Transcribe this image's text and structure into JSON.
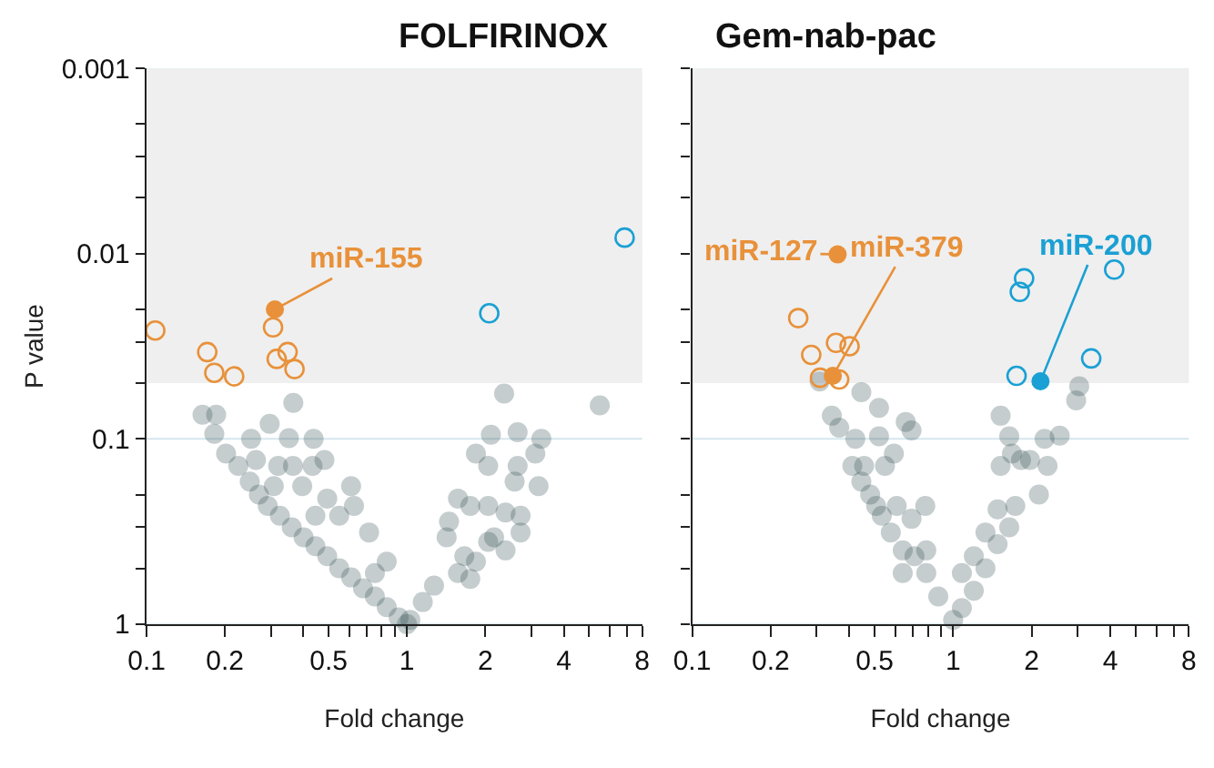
{
  "chart_data": [
    {
      "type": "scatter",
      "title": "FOLFIRINOX",
      "xlabel": "Fold change",
      "ylabel": "P value",
      "log": "xy",
      "grid": "y",
      "xlim": [
        0.1,
        8
      ],
      "xticks": [
        0.1,
        0.2,
        {
          "value": 0.3,
          "label": null
        },
        {
          "value": 0.4,
          "label": null
        },
        0.5,
        {
          "value": 0.6,
          "label": null
        },
        {
          "value": 0.7,
          "label": null
        },
        {
          "value": 0.8,
          "label": null
        },
        {
          "value": 0.9,
          "label": null
        },
        1,
        2,
        {
          "value": 3,
          "label": null
        },
        4,
        {
          "value": 5,
          "label": null
        },
        {
          "value": 6,
          "label": null
        },
        {
          "value": 7,
          "label": null
        },
        8
      ],
      "ylim": [
        1,
        0.001
      ],
      "yticks": [
        1,
        {
          "value": 0.5,
          "label": null
        },
        {
          "value": 0.3,
          "label": null
        },
        {
          "value": 0.2,
          "label": null
        },
        0.1,
        {
          "value": 0.05,
          "label": null
        },
        {
          "value": 0.03,
          "label": null
        },
        {
          "value": 0.02,
          "label": null
        },
        0.01,
        {
          "value": 0.005,
          "label": null
        },
        {
          "value": 0.003,
          "label": null
        },
        {
          "value": 0.002,
          "label": null
        },
        0.001
      ],
      "bands": [
        {
          "axis": "y",
          "from": 0.05,
          "to": 0.001,
          "color": "#efefef"
        }
      ],
      "annotations": [
        {
          "text": "miR-155",
          "x": 0.311,
          "y": 0.02
        }
      ],
      "series": [
        {
          "color": "#2f4a4f",
          "marker": "circle",
          "x": [
            0.164,
            0.185,
            0.182,
            0.202,
            0.225,
            0.249,
            0.27,
            0.292,
            0.325,
            0.361,
            0.401,
            0.445,
            0.494,
            0.549,
            0.61,
            0.678,
            0.753,
            0.836,
            0.929,
            1.0,
            0.366,
            0.297,
            0.252,
            0.352,
            0.438,
            0.263,
            0.32,
            0.365,
            0.434,
            0.482,
            0.308,
            0.396,
            0.494,
            0.61,
            0.626,
            0.549,
            0.445,
            0.715,
            0.836,
            0.753,
            2.36,
            5.5,
            2.1,
            2.66,
            3.28,
            1.84,
            2.05,
            3.11,
            2.66,
            3.2,
            2.59,
            1.57,
            1.75,
            2.05,
            2.39,
            2.73,
            2.73,
            1.45,
            1.42,
            1.66,
            2.05,
            1.27,
            1.15,
            1.03,
            1.75,
            2.16,
            2.39,
            1.57,
            1.84
          ],
          "values": [
            0.074,
            0.074,
            0.094,
            0.12,
            0.14,
            0.17,
            0.2,
            0.23,
            0.26,
            0.3,
            0.34,
            0.38,
            0.43,
            0.5,
            0.56,
            0.64,
            0.71,
            0.81,
            0.92,
            1.0,
            0.064,
            0.083,
            0.1,
            0.099,
            0.1,
            0.13,
            0.14,
            0.14,
            0.14,
            0.13,
            0.18,
            0.18,
            0.21,
            0.18,
            0.23,
            0.26,
            0.26,
            0.32,
            0.46,
            0.53,
            0.057,
            0.066,
            0.095,
            0.092,
            0.1,
            0.12,
            0.14,
            0.12,
            0.14,
            0.18,
            0.17,
            0.21,
            0.23,
            0.23,
            0.25,
            0.26,
            0.32,
            0.28,
            0.34,
            0.43,
            0.36,
            0.62,
            0.76,
            0.95,
            0.57,
            0.34,
            0.4,
            0.53,
            0.46
          ]
        },
        {
          "color": "#e8913a",
          "marker": "circle-open",
          "x": [
            0.108,
            0.171,
            0.182,
            0.217,
            0.306,
            0.316,
            0.348,
            0.37
          ],
          "values": [
            0.026,
            0.034,
            0.044,
            0.046,
            0.025,
            0.037,
            0.034,
            0.042
          ]
        },
        {
          "color": "#e8913a",
          "marker": "circle",
          "x": [
            0.311
          ],
          "values": [
            0.02
          ]
        },
        {
          "color": "#1aa0d4",
          "marker": "circle-open",
          "x": [
            2.07,
            6.85
          ],
          "values": [
            0.021,
            0.0082
          ]
        }
      ]
    },
    {
      "type": "scatter",
      "title": "Gem-nab-pac",
      "xlabel": "Fold change",
      "log": "xy",
      "grid": "y",
      "tick_labels": "x",
      "xlim": [
        0.1,
        8
      ],
      "xticks": [
        0.1,
        0.2,
        {
          "value": 0.3,
          "label": null
        },
        {
          "value": 0.4,
          "label": null
        },
        0.5,
        {
          "value": 0.6,
          "label": null
        },
        {
          "value": 0.7,
          "label": null
        },
        {
          "value": 0.8,
          "label": null
        },
        {
          "value": 0.9,
          "label": null
        },
        1,
        2,
        {
          "value": 3,
          "label": null
        },
        4,
        {
          "value": 5,
          "label": null
        },
        {
          "value": 6,
          "label": null
        },
        {
          "value": 7,
          "label": null
        },
        8
      ],
      "ylim": [
        1,
        0.001
      ],
      "yticks": [
        1,
        {
          "value": 0.5,
          "label": null
        },
        {
          "value": 0.3,
          "label": null
        },
        {
          "value": 0.2,
          "label": null
        },
        0.1,
        {
          "value": 0.05,
          "label": null
        },
        {
          "value": 0.03,
          "label": null
        },
        {
          "value": 0.02,
          "label": null
        },
        0.01,
        {
          "value": 0.005,
          "label": null
        },
        {
          "value": 0.003,
          "label": null
        },
        {
          "value": 0.002,
          "label": null
        },
        0.001
      ],
      "bands": [
        {
          "axis": "y",
          "from": 0.05,
          "to": 0.001,
          "color": "#efefef"
        }
      ],
      "annotations": [
        {
          "text": "miR-127",
          "x": 0.361,
          "y": 0.0101
        },
        {
          "text": "miR-379",
          "x": 0.346,
          "y": 0.0457
        },
        {
          "text": "miR-200",
          "x": 2.16,
          "y": 0.0489
        }
      ],
      "series": [
        {
          "color": "#2f4a4f",
          "marker": "circle",
          "x": [
            1.0,
            0.877,
            0.789,
            0.711,
            0.641,
            0.577,
            0.533,
            0.481,
            0.445,
            0.422,
            0.366,
            0.343,
            0.308,
            0.445,
            0.52,
            0.658,
            0.693,
            0.52,
            0.593,
            0.548,
            0.456,
            0.411,
            0.782,
            0.693,
            0.608,
            0.507,
            0.789,
            0.641,
            1.08,
            1.2,
            1.33,
            1.48,
            1.64,
            2.13,
            2.3,
            2.24,
            2.56,
            3.04,
            2.96,
            1.52,
            1.64,
            1.68,
            1.52,
            1.82,
            1.97,
            1.73,
            1.48,
            1.33,
            1.2,
            1.08
          ],
          "values": [
            0.95,
            0.71,
            0.53,
            0.43,
            0.4,
            0.32,
            0.26,
            0.2,
            0.17,
            0.1,
            0.087,
            0.075,
            0.049,
            0.056,
            0.068,
            0.081,
            0.09,
            0.097,
            0.12,
            0.14,
            0.14,
            0.14,
            0.23,
            0.27,
            0.23,
            0.23,
            0.4,
            0.53,
            0.82,
            0.66,
            0.5,
            0.37,
            0.3,
            0.2,
            0.14,
            0.1,
            0.096,
            0.052,
            0.062,
            0.075,
            0.097,
            0.12,
            0.14,
            0.13,
            0.13,
            0.23,
            0.24,
            0.32,
            0.43,
            0.53
          ]
        },
        {
          "color": "#e8913a",
          "marker": "circle-open",
          "x": [
            0.255,
            0.286,
            0.356,
            0.401,
            0.309,
            0.366
          ],
          "values": [
            0.0223,
            0.0352,
            0.0303,
            0.0316,
            0.0468,
            0.0478
          ]
        },
        {
          "color": "#e8913a",
          "marker": "circle",
          "x": [
            0.346,
            0.361
          ],
          "values": [
            0.0457,
            0.0101
          ]
        },
        {
          "color": "#1aa0d4",
          "marker": "circle-open",
          "x": [
            1.87,
            1.8,
            4.14,
            1.75,
            3.38
          ],
          "values": [
            0.0136,
            0.0161,
            0.0122,
            0.0457,
            0.0368
          ]
        },
        {
          "color": "#1aa0d4",
          "marker": "circle",
          "x": [
            2.16
          ],
          "values": [
            0.0489
          ]
        }
      ]
    }
  ]
}
